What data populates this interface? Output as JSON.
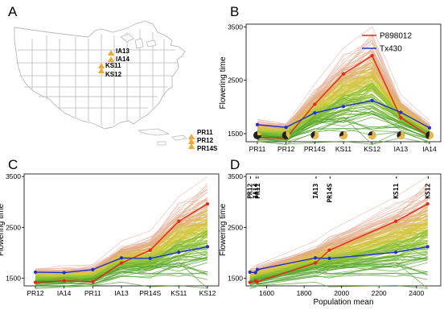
{
  "figure": {
    "panel_letters": [
      "A",
      "B",
      "C",
      "D"
    ],
    "map_sites": [
      {
        "label": "IA13"
      },
      {
        "label": "IA14"
      },
      {
        "label": "KS11"
      },
      {
        "label": "KS12"
      },
      {
        "label": "PR11"
      },
      {
        "label": "PR12"
      },
      {
        "label": "PR14S"
      }
    ],
    "marker_color": "#f0a830"
  },
  "chart_data": [
    {
      "panel": "B",
      "type": "line",
      "ylabel": "Flowering time",
      "ylim": [
        1350,
        3550
      ],
      "yticks": [
        1500,
        2500,
        3500
      ],
      "categories": [
        "PR11",
        "PR12",
        "PR14S",
        "KS11",
        "KS12",
        "IA13",
        "IA14"
      ],
      "series": [
        {
          "name": "P898012",
          "color": "#e8231c",
          "values": [
            1430,
            1420,
            2050,
            2620,
            2960,
            1800,
            1450
          ]
        },
        {
          "name": "Tx430",
          "color": "#1f2fd1",
          "values": [
            1670,
            1620,
            1890,
            2010,
            2120,
            1900,
            1610
          ]
        }
      ],
      "background_lines": "many recombinant inbred lines, colored green (early) to pink (late)",
      "legend": "top-right",
      "daylength_icons": true
    },
    {
      "panel": "C",
      "type": "line",
      "ylabel": "Flowering time",
      "ylim": [
        1350,
        3550
      ],
      "yticks": [
        1500,
        2500,
        3500
      ],
      "categories": [
        "PR12",
        "IA14",
        "PR11",
        "IA13",
        "PR14S",
        "KS11",
        "KS12"
      ],
      "series": [
        {
          "name": "P898012",
          "color": "#e8231c",
          "values": [
            1420,
            1450,
            1430,
            1800,
            2050,
            2620,
            2960
          ]
        },
        {
          "name": "Tx430",
          "color": "#1f2fd1",
          "values": [
            1620,
            1610,
            1670,
            1900,
            1890,
            2010,
            2120
          ]
        }
      ]
    },
    {
      "panel": "D",
      "type": "line",
      "xlabel": "Population mean",
      "ylabel": "Flowering time",
      "xlim": [
        1490,
        2530
      ],
      "ylim": [
        1350,
        3550
      ],
      "xticks": [
        1600,
        1800,
        2000,
        2200,
        2400
      ],
      "yticks": [
        1500,
        2500,
        3500
      ],
      "environments": [
        {
          "label": "PR12",
          "x": 1510
        },
        {
          "label": "IA14",
          "x": 1540
        },
        {
          "label": "PR11",
          "x": 1550
        },
        {
          "label": "IA13",
          "x": 1860
        },
        {
          "label": "PR14S",
          "x": 1935
        },
        {
          "label": "KS11",
          "x": 2290
        },
        {
          "label": "KS12",
          "x": 2460
        }
      ],
      "series": [
        {
          "name": "P898012",
          "color": "#e8231c",
          "values": [
            1420,
            1450,
            1430,
            1800,
            2050,
            2620,
            2960
          ]
        },
        {
          "name": "Tx430",
          "color": "#1f2fd1",
          "values": [
            1620,
            1610,
            1670,
            1900,
            1890,
            2010,
            2120
          ]
        }
      ]
    }
  ]
}
